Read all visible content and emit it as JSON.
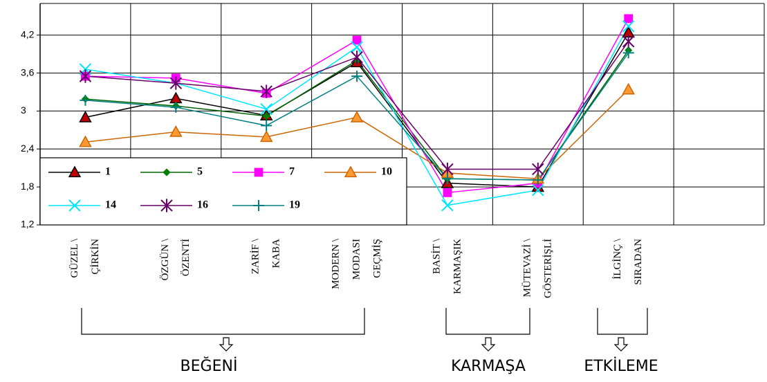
{
  "chart_data": {
    "type": "line",
    "categories": [
      [
        "GÜZEL \\",
        "ÇİRKİN"
      ],
      [
        "ÖZGÜN \\",
        "ÖZENTİ"
      ],
      [
        "ZARİF \\",
        "KABA"
      ],
      [
        "MODERN \\",
        "MODASI",
        "GEÇMİŞ"
      ],
      [
        "BASİT \\",
        "KARMAŞIK"
      ],
      [
        "MÜTEVAZİ \\",
        "GÖSTERİŞLİ"
      ],
      [
        "İLGİNÇ \\",
        "SIRADAN"
      ],
      null
    ],
    "ylim": [
      1.2,
      4.7
    ],
    "yticks": [
      {
        "value": 1.2,
        "label": "1,2"
      },
      {
        "value": 1.8,
        "label": "1,8"
      },
      {
        "value": 2.4,
        "label": "2,4"
      },
      3,
      {
        "value": 3.6,
        "label": "3,6"
      },
      {
        "value": 4.2,
        "label": "4,2"
      }
    ],
    "grid": true,
    "legend": "bottom-left",
    "series": [
      {
        "name": "1",
        "color": "#000000",
        "marker_color": "#c00000",
        "marker": "triangle",
        "values": [
          2.9,
          3.2,
          2.93,
          3.77,
          1.86,
          1.8,
          4.24,
          null
        ]
      },
      {
        "name": "5",
        "color": "#006400",
        "marker_color": "#008000",
        "marker": "diamond",
        "values": [
          3.19,
          3.08,
          2.92,
          3.8,
          1.93,
          1.91,
          3.96,
          null
        ]
      },
      {
        "name": "7",
        "color": "#ff00ff",
        "marker_color": "#ff00ff",
        "marker": "square",
        "values": [
          3.55,
          3.52,
          3.28,
          4.12,
          1.71,
          1.86,
          4.46,
          null
        ]
      },
      {
        "name": "10",
        "color": "#cc6600",
        "marker_color": "#ff9933",
        "marker": "triangle",
        "values": [
          2.51,
          2.67,
          2.59,
          2.9,
          2.02,
          1.93,
          3.34,
          null
        ]
      },
      {
        "name": "14",
        "color": "#00e5ff",
        "marker_color": "#00e5ff",
        "marker": "x",
        "values": [
          3.66,
          3.44,
          3.03,
          4.01,
          1.51,
          1.75,
          4.34,
          null
        ]
      },
      {
        "name": "16",
        "color": "#660066",
        "marker_color": "#660066",
        "marker": "star",
        "values": [
          3.55,
          3.44,
          3.31,
          3.85,
          2.08,
          2.08,
          4.1,
          null
        ]
      },
      {
        "name": "19",
        "color": "#008080",
        "marker_color": "#008080",
        "marker": "plus",
        "values": [
          3.17,
          3.06,
          2.77,
          3.55,
          1.93,
          1.91,
          3.92,
          null
        ]
      }
    ],
    "groups": [
      "BEĞENİ",
      "KARMAŞA",
      "ETKİLEME"
    ]
  }
}
